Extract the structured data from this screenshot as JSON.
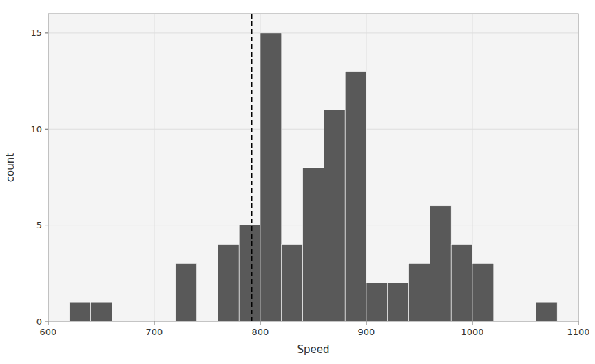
{
  "chart_data": {
    "type": "histogram",
    "x": [
      620,
      640,
      720,
      760,
      780,
      800,
      820,
      840,
      860,
      880,
      900,
      920,
      940,
      960,
      980,
      1000,
      1060
    ],
    "values": [
      1,
      1,
      3,
      4,
      5,
      15,
      4,
      8,
      11,
      13,
      2,
      2,
      3,
      6,
      4,
      3,
      1
    ],
    "bin_width": 20,
    "color": "#595959",
    "xlabel": "Speed",
    "ylabel": "count",
    "xlim": [
      600,
      1100
    ],
    "ylim": [
      0,
      16
    ],
    "xticks": [
      600,
      700,
      800,
      900,
      1000,
      1100
    ],
    "yticks": [
      0,
      5,
      10,
      15
    ],
    "grid": true,
    "vline": {
      "x": 792,
      "color": "black",
      "line_style": "dashed"
    }
  }
}
